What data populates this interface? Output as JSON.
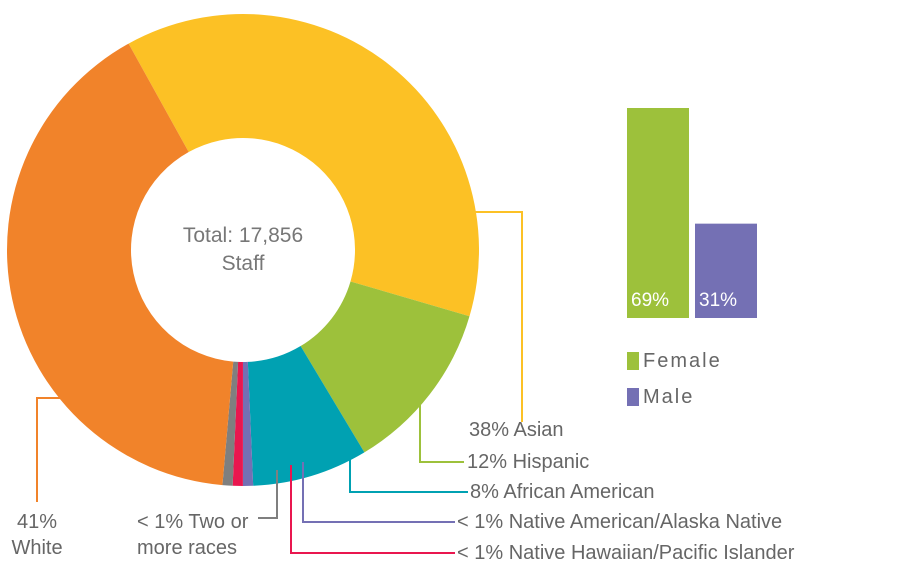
{
  "chart_data": [
    {
      "type": "pie",
      "center_label": "Total: 17,856 Staff",
      "categories": [
        "Asian",
        "Hispanic",
        "African American",
        "Native American/Alaska Native",
        "Native Hawaiian/Pacific Islander",
        "Two or more races",
        "White"
      ],
      "values": [
        38,
        12,
        8,
        0.7,
        0.7,
        0.7,
        41
      ],
      "value_labels": [
        "38%",
        "12%",
        "8%",
        "< 1%",
        "< 1%",
        "< 1%",
        "41%"
      ],
      "colors": [
        "#fcc125",
        "#9dc13b",
        "#00a1b2",
        "#7470b4",
        "#e9174f",
        "#7f7f7f",
        "#f1832a"
      ]
    },
    {
      "type": "bar",
      "categories": [
        "Female",
        "Male"
      ],
      "values": [
        69,
        31
      ],
      "value_labels": [
        "69%",
        "31%"
      ],
      "colors": [
        "#9dc13b",
        "#7470b4"
      ],
      "legend": "bottom"
    }
  ]
}
